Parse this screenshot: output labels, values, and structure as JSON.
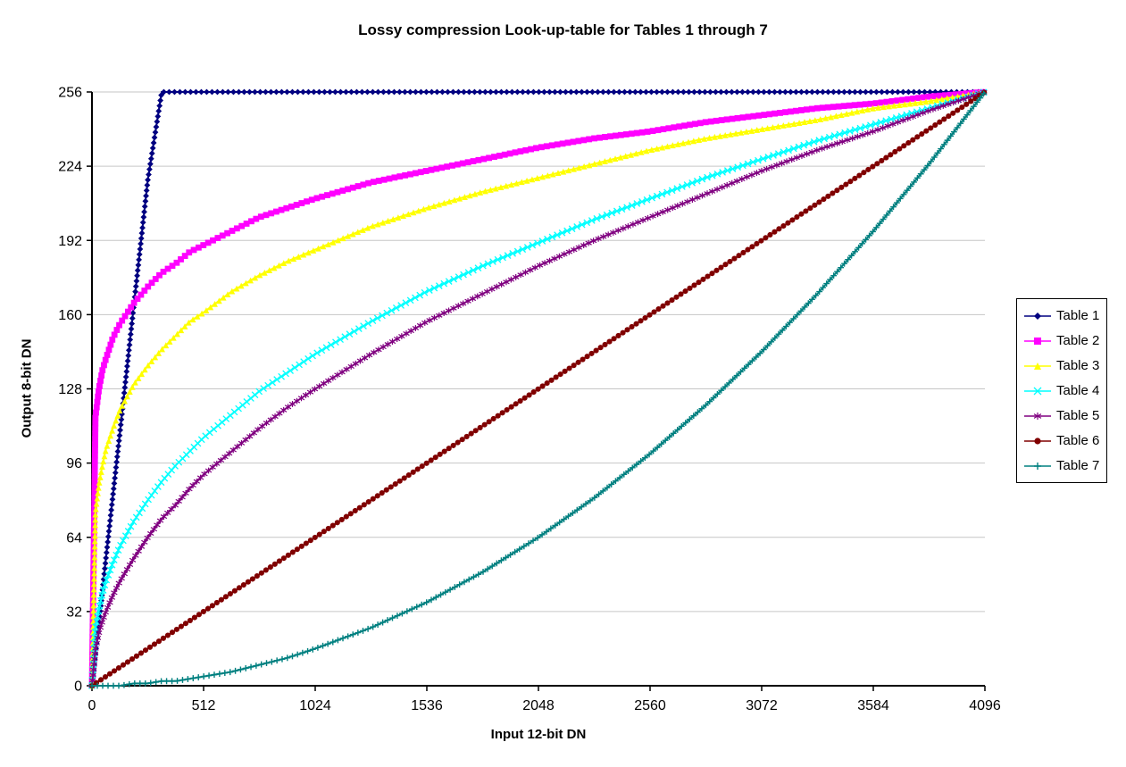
{
  "chart_data": {
    "type": "line",
    "title": "Lossy compression Look-up-table for Tables 1 through 7",
    "xlabel": "Input 12-bit DN",
    "ylabel": "Output 8-bit DN",
    "xlim": [
      0,
      4096
    ],
    "ylim": [
      0,
      256
    ],
    "x_ticks": [
      0,
      512,
      1024,
      1536,
      2048,
      2560,
      3072,
      3584,
      4096
    ],
    "y_ticks": [
      0,
      32,
      64,
      96,
      128,
      160,
      192,
      224,
      256
    ],
    "grid": "horizontal",
    "legend_position": "right",
    "x": [
      0,
      16,
      32,
      48,
      64,
      96,
      128,
      192,
      256,
      320,
      384,
      448,
      512,
      640,
      768,
      896,
      1024,
      1280,
      1536,
      1792,
      2048,
      2304,
      2560,
      2816,
      3072,
      3328,
      3584,
      3840,
      4096
    ],
    "series": [
      {
        "name": "Table 1",
        "color": "#000080",
        "marker": "diamond",
        "values": [
          0,
          14,
          27,
          41,
          55,
          82,
          109,
          164,
          218,
          256,
          256,
          256,
          256,
          256,
          256,
          256,
          256,
          256,
          256,
          256,
          256,
          256,
          256,
          256,
          256,
          256,
          256,
          256,
          256
        ]
      },
      {
        "name": "Table 2",
        "color": "#FF00FF",
        "marker": "square",
        "values": [
          0,
          116,
          128,
          136,
          141,
          150,
          156,
          165,
          172,
          178,
          182,
          187,
          190,
          196,
          202,
          206,
          210,
          217,
          222,
          227,
          232,
          236,
          239,
          243,
          246,
          249,
          251,
          254,
          256
        ]
      },
      {
        "name": "Table 3",
        "color": "#FFFF00",
        "marker": "triangle",
        "values": [
          0,
          75,
          87,
          95,
          102,
          111,
          119,
          130,
          138,
          145,
          151,
          157,
          161,
          170,
          177,
          183,
          188,
          198,
          206,
          213,
          219,
          225,
          231,
          236,
          240,
          244,
          249,
          252,
          256
        ]
      },
      {
        "name": "Table 4",
        "color": "#00FFFF",
        "marker": "x",
        "values": [
          0,
          25,
          33,
          40,
          45,
          53,
          60,
          71,
          80,
          88,
          95,
          101,
          107,
          117,
          127,
          135,
          143,
          157,
          170,
          181,
          191,
          201,
          210,
          219,
          227,
          235,
          242,
          249,
          256
        ]
      },
      {
        "name": "Table 5",
        "color": "#800080",
        "marker": "star",
        "values": [
          0,
          16,
          23,
          28,
          32,
          39,
          45,
          55,
          64,
          72,
          78,
          85,
          91,
          101,
          111,
          120,
          128,
          143,
          157,
          169,
          181,
          192,
          202,
          212,
          222,
          231,
          239,
          248,
          256
        ]
      },
      {
        "name": "Table 6",
        "color": "#800000",
        "marker": "circle",
        "values": [
          0,
          1,
          2,
          3,
          4,
          6,
          8,
          12,
          16,
          20,
          24,
          28,
          32,
          40,
          48,
          56,
          64,
          80,
          96,
          112,
          128,
          144,
          160,
          176,
          192,
          208,
          224,
          240,
          256
        ]
      },
      {
        "name": "Table 7",
        "color": "#008080",
        "marker": "plus",
        "values": [
          0,
          0,
          0,
          0,
          0,
          0,
          0,
          1,
          1,
          2,
          2,
          3,
          4,
          6,
          9,
          12,
          16,
          25,
          36,
          49,
          64,
          81,
          100,
          121,
          144,
          169,
          196,
          225,
          256
        ]
      }
    ]
  }
}
